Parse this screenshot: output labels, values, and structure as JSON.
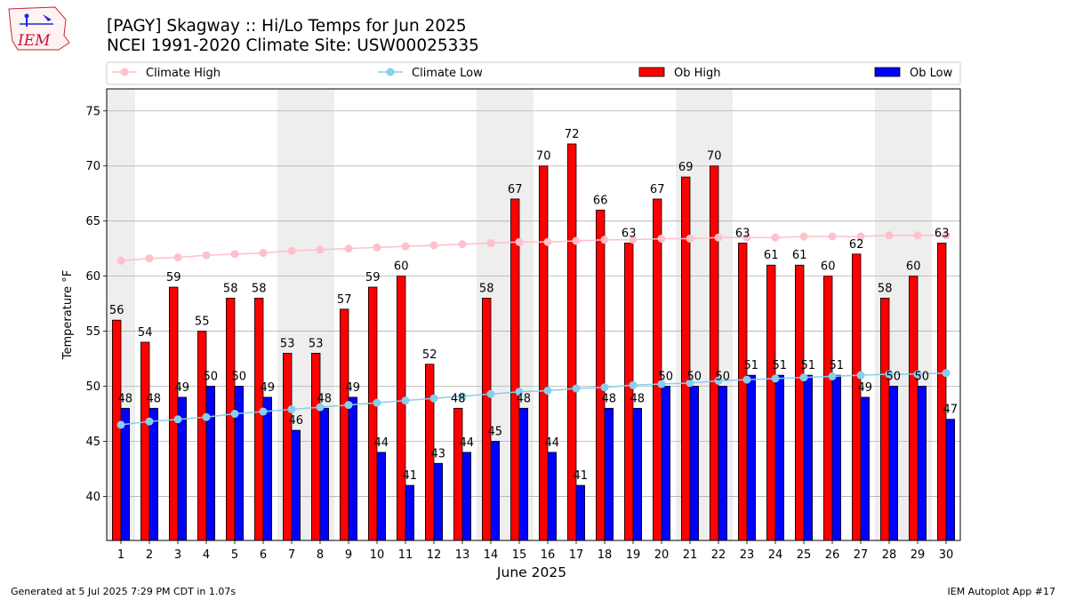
{
  "logo": {
    "text": "IEM"
  },
  "chart_data": {
    "type": "bar",
    "title": "[PAGY] Skagway :: Hi/Lo Temps for Jun 2025",
    "subtitle": "NCEI 1991-2020 Climate Site: USW00025335",
    "xlabel": "June 2025",
    "ylabel": "Temperature °F",
    "ylim": [
      36,
      77
    ],
    "yticks": [
      40,
      45,
      50,
      55,
      60,
      65,
      70,
      75
    ],
    "grid": true,
    "legend_position": "top",
    "categories": [
      "1",
      "2",
      "3",
      "4",
      "5",
      "6",
      "7",
      "8",
      "9",
      "10",
      "11",
      "12",
      "13",
      "14",
      "15",
      "16",
      "17",
      "18",
      "19",
      "20",
      "21",
      "22",
      "23",
      "24",
      "25",
      "26",
      "27",
      "28",
      "29",
      "30"
    ],
    "weekend_shading_days": [
      1,
      7,
      8,
      14,
      15,
      21,
      22,
      28,
      29
    ],
    "series": [
      {
        "name": "Climate High",
        "kind": "line",
        "color": "#ffc0cb",
        "values": [
          61.4,
          61.6,
          61.7,
          61.9,
          62.0,
          62.1,
          62.3,
          62.4,
          62.5,
          62.6,
          62.7,
          62.8,
          62.9,
          63.0,
          63.1,
          63.1,
          63.2,
          63.3,
          63.3,
          63.4,
          63.4,
          63.5,
          63.5,
          63.5,
          63.6,
          63.6,
          63.6,
          63.7,
          63.7,
          63.7
        ]
      },
      {
        "name": "Climate Low",
        "kind": "line",
        "color": "#87ceeb",
        "values": [
          46.5,
          46.8,
          47.0,
          47.2,
          47.5,
          47.7,
          47.9,
          48.1,
          48.3,
          48.5,
          48.7,
          48.9,
          49.1,
          49.3,
          49.5,
          49.6,
          49.8,
          49.9,
          50.1,
          50.2,
          50.3,
          50.5,
          50.6,
          50.7,
          50.8,
          50.9,
          51.0,
          51.1,
          51.1,
          51.2
        ]
      },
      {
        "name": "Ob High",
        "kind": "bar",
        "color": "#ff0000",
        "values": [
          56,
          54,
          59,
          55,
          58,
          58,
          53,
          53,
          57,
          59,
          60,
          52,
          48,
          58,
          67,
          70,
          72,
          66,
          63,
          67,
          69,
          70,
          63,
          61,
          61,
          60,
          62,
          58,
          60,
          63
        ]
      },
      {
        "name": "Ob Low",
        "kind": "bar",
        "color": "#0000ff",
        "values": [
          48,
          48,
          49,
          50,
          50,
          49,
          46,
          48,
          49,
          44,
          41,
          43,
          44,
          45,
          48,
          44,
          41,
          48,
          48,
          50,
          50,
          50,
          51,
          51,
          51,
          51,
          49,
          50,
          50,
          47
        ]
      }
    ]
  },
  "footer": {
    "left": "Generated at 5 Jul 2025 7:29 PM CDT in 1.07s",
    "right": "IEM Autoplot App #17"
  }
}
